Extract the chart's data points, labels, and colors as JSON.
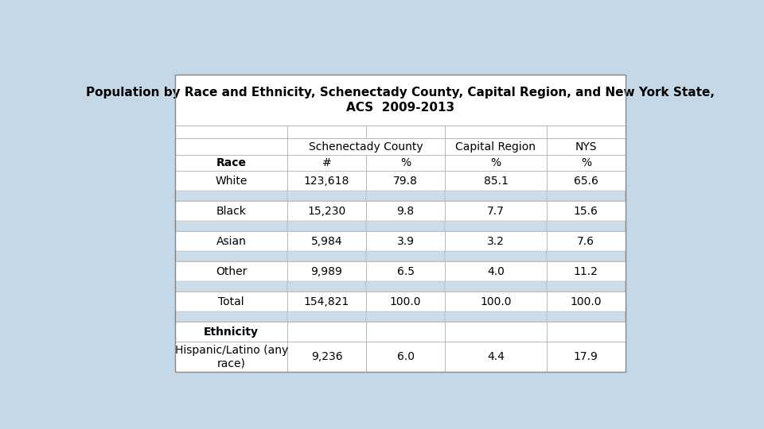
{
  "title_line1": "Population by Race and Ethnicity, Schenectady County, Capital Region, and New York State,",
  "title_line2": "ACS  2009-2013",
  "background_color": "#c5d8e8",
  "table_bg": "#ffffff",
  "spacer_color": "#ccdce8",
  "header_bg": "#e8e8e8",
  "rows": [
    [
      "White",
      "123,618",
      "79.8",
      "85.1",
      "65.6"
    ],
    [
      "Black",
      "15,230",
      "9.8",
      "7.7",
      "15.6"
    ],
    [
      "Asian",
      "5,984",
      "3.9",
      "3.2",
      "7.6"
    ],
    [
      "Other",
      "9,989",
      "6.5",
      "4.0",
      "11.2"
    ],
    [
      "Total",
      "154,821",
      "100.0",
      "100.0",
      "100.0"
    ],
    [
      "Ethnicity",
      "",
      "",
      "",
      ""
    ],
    [
      "Hispanic/Latino (any\nrace)",
      "9,236",
      "6.0",
      "4.4",
      "17.9"
    ]
  ],
  "col_weights": [
    0.22,
    0.155,
    0.155,
    0.2,
    0.155
  ],
  "font_size": 10,
  "title_font_size": 11,
  "header_font_size": 10
}
